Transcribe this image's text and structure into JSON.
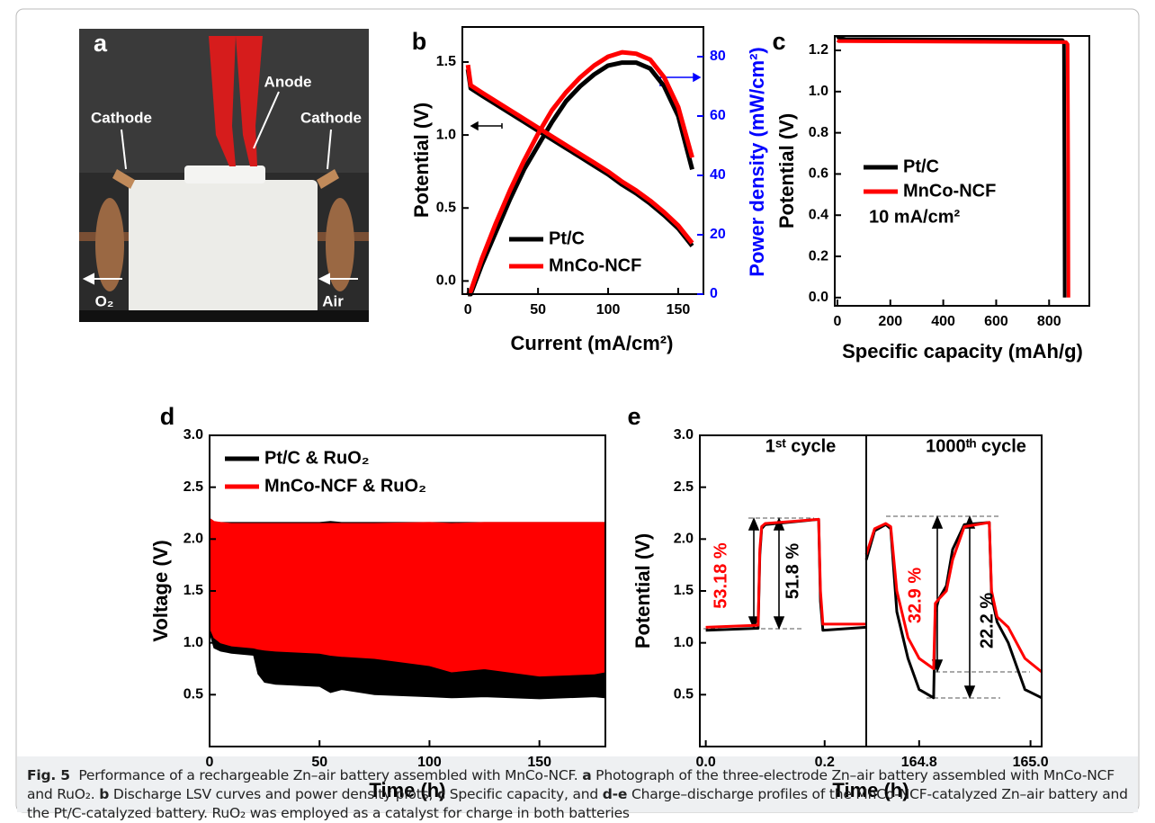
{
  "photo": {
    "label": "a",
    "texts": [
      "Anode",
      "Cathode",
      "Cathode",
      "O₂",
      "Air"
    ]
  },
  "chart_data": [
    {
      "type": "line",
      "label": "b",
      "xlabel": "Current (mA/cm²)",
      "ylabel": "Potential (V)",
      "y2label": "Power density (mW/cm²)",
      "x": [
        0,
        2,
        10,
        20,
        30,
        40,
        50,
        60,
        70,
        80,
        90,
        100,
        110,
        120,
        130,
        140,
        150,
        160
      ],
      "series": [
        {
          "name": "Pt/C",
          "color": "#000000",
          "values": [
            1.45,
            1.32,
            1.27,
            1.21,
            1.15,
            1.09,
            1.03,
            0.97,
            0.91,
            0.85,
            0.79,
            0.73,
            0.66,
            0.6,
            0.53,
            0.45,
            0.36,
            0.24
          ],
          "y2_values": [
            0,
            0,
            10,
            21,
            32,
            42,
            50,
            58,
            65,
            70,
            74,
            77,
            78,
            78,
            76,
            70,
            60,
            42
          ]
        },
        {
          "name": "MnCo-NCF",
          "color": "#ff0000",
          "values": [
            1.48,
            1.34,
            1.29,
            1.23,
            1.17,
            1.11,
            1.05,
            0.99,
            0.93,
            0.87,
            0.81,
            0.75,
            0.68,
            0.62,
            0.55,
            0.47,
            0.38,
            0.26
          ],
          "y2_values": [
            0,
            1,
            12,
            24,
            35,
            45,
            54,
            62,
            68,
            73,
            77,
            80,
            81.5,
            81,
            79,
            73,
            63,
            46
          ]
        }
      ],
      "xlim": [
        -4,
        168
      ],
      "ylim": [
        -0.09,
        1.74
      ],
      "y2lim": [
        0,
        90
      ],
      "xticks": [
        0,
        50,
        100,
        150
      ],
      "yticks": [
        {
          "value": 0,
          "label": "0.0"
        },
        0.5,
        {
          "value": 1,
          "label": "1.0"
        },
        1.5
      ],
      "y2ticks": [
        0,
        20,
        40,
        60,
        80
      ],
      "y2color": "#0000ff"
    },
    {
      "type": "line",
      "label": "c",
      "xlabel": "Specific capacity (mAh/g)",
      "ylabel": "Potential (V)",
      "annotation": "10 mA/cm²",
      "series": [
        {
          "name": "Pt/C",
          "color": "#000000",
          "x": [
            0,
            5,
            30,
            850,
            856,
            858,
            859
          ],
          "values": [
            1.27,
            1.26,
            1.255,
            1.25,
            1.24,
            0.6,
            0
          ]
        },
        {
          "name": "MnCo-NCF",
          "color": "#ff0000",
          "x": [
            0,
            5,
            30,
            864,
            870,
            872,
            873
          ],
          "values": [
            1.25,
            1.245,
            1.245,
            1.24,
            1.23,
            0.6,
            0
          ]
        }
      ],
      "xlim": [
        -10,
        952
      ],
      "ylim": [
        -0.04,
        1.27
      ],
      "xticks": [
        0,
        200,
        400,
        600,
        800
      ],
      "yticks": [
        {
          "value": 0,
          "label": "0.0"
        },
        0.2,
        0.4,
        0.6,
        0.8,
        {
          "value": 1,
          "label": "1.0"
        },
        1.2
      ]
    },
    {
      "type": "area",
      "label": "d",
      "xlabel": "Time (h)",
      "ylabel": "Voltage (V)",
      "x": [
        0,
        2,
        5,
        10,
        20,
        22,
        25,
        30,
        50,
        55,
        60,
        75,
        100,
        110,
        125,
        150,
        175,
        180
      ],
      "series": [
        {
          "name": "Pt/C & RuO₂",
          "color": "#000000",
          "values_high": [
            2.16,
            2.16,
            2.16,
            2.16,
            2.16,
            2.16,
            2.16,
            2.16,
            2.16,
            2.17,
            2.16,
            2.16,
            2.16,
            2.16,
            2.16,
            2.16,
            2.16,
            2.16
          ],
          "values_low": [
            1.1,
            0.95,
            0.92,
            0.9,
            0.88,
            0.7,
            0.62,
            0.6,
            0.58,
            0.52,
            0.55,
            0.5,
            0.48,
            0.47,
            0.48,
            0.46,
            0.48,
            0.47
          ]
        },
        {
          "name": "MnCo-NCF & RuO₂",
          "color": "#ff0000",
          "values_high": [
            2.2,
            2.17,
            2.16,
            2.15,
            2.15,
            2.15,
            2.15,
            2.15,
            2.15,
            2.15,
            2.15,
            2.15,
            2.16,
            2.15,
            2.16,
            2.16,
            2.16,
            2.16
          ],
          "values_low": [
            1.15,
            1.05,
            1.0,
            0.97,
            0.95,
            0.94,
            0.93,
            0.92,
            0.9,
            0.88,
            0.87,
            0.85,
            0.78,
            0.72,
            0.75,
            0.68,
            0.7,
            0.72
          ]
        }
      ],
      "xlim": [
        0,
        180
      ],
      "ylim": [
        0,
        3
      ],
      "xticks": [
        0,
        50,
        100,
        150
      ],
      "yticks": [
        0.5,
        {
          "value": 1,
          "label": "1.0"
        },
        1.5,
        {
          "value": 2,
          "label": "2.0"
        },
        2.5,
        {
          "value": 3,
          "label": "3.0"
        }
      ]
    },
    {
      "type": "broken-line",
      "label": "e",
      "xlabel": "Time (h)",
      "ylabel": "Potential (V)",
      "ylim": [
        0,
        3
      ],
      "yticks": [
        0.5,
        {
          "value": 1,
          "label": "1.0"
        },
        1.5,
        {
          "value": 2,
          "label": "2.0"
        },
        2.5,
        {
          "value": 3,
          "label": "3.0"
        }
      ],
      "panels": [
        {
          "title": "1ˢᵗ cycle",
          "xlim": [
            -0.01,
            0.27
          ],
          "xticks": [
            {
              "value": 0,
              "label": "0.0"
            },
            0.2
          ],
          "series": [
            {
              "color": "#000000",
              "x": [
                0,
                0.088,
                0.091,
                0.094,
                0.1,
                0.19,
                0.193,
                0.197,
                0.27
              ],
              "values": [
                1.12,
                1.14,
                1.85,
                2.1,
                2.14,
                2.19,
                1.4,
                1.12,
                1.15
              ]
            },
            {
              "color": "#ff0000",
              "x": [
                0,
                0.088,
                0.091,
                0.094,
                0.1,
                0.19,
                0.193,
                0.197,
                0.27
              ],
              "values": [
                1.15,
                1.17,
                1.9,
                2.12,
                2.15,
                2.19,
                1.5,
                1.18,
                1.18
              ]
            }
          ]
        },
        {
          "title": "1000ᵗʰ cycle",
          "xlim": [
            164.705,
            165.02
          ],
          "xticks": [
            164.8,
            {
              "value": 165,
              "label": "165.0"
            }
          ],
          "series": [
            {
              "color": "#000000",
              "x": [
                164.705,
                164.72,
                164.74,
                164.749,
                164.76,
                164.78,
                164.8,
                164.826,
                164.829,
                164.835,
                164.849,
                164.86,
                164.881,
                164.926,
                164.93,
                164.94,
                164.96,
                164.99,
                165.02
              ],
              "values": [
                1.8,
                2.08,
                2.14,
                2.1,
                1.3,
                0.85,
                0.55,
                0.47,
                1.3,
                1.42,
                1.55,
                1.9,
                2.14,
                2.16,
                1.45,
                1.2,
                1.0,
                0.55,
                0.47
              ]
            },
            {
              "color": "#ff0000",
              "x": [
                164.705,
                164.72,
                164.74,
                164.749,
                164.76,
                164.78,
                164.8,
                164.826,
                164.829,
                164.835,
                164.849,
                164.86,
                164.881,
                164.926,
                164.93,
                164.94,
                164.96,
                164.99,
                165.02
              ],
              "values": [
                1.85,
                2.1,
                2.15,
                2.12,
                1.5,
                1.05,
                0.85,
                0.75,
                1.38,
                1.42,
                1.5,
                1.8,
                2.12,
                2.16,
                1.5,
                1.25,
                1.15,
                0.85,
                0.72
              ]
            }
          ]
        }
      ],
      "annotations": [
        {
          "text": "53.18 %",
          "color": "#ff0000"
        },
        {
          "text": "51.8 %",
          "color": "#000000"
        },
        {
          "text": "32.9 %",
          "color": "#ff0000"
        },
        {
          "text": "22.2 %",
          "color": "#000000"
        }
      ]
    }
  ],
  "caption": [
    {
      "text": "Fig. 5",
      "bold": true
    },
    {
      "text": "  Performance of a rechargeable Zn–air battery assembled with MnCo-NCF. ",
      "bold": false
    },
    {
      "text": "a",
      "bold": true
    },
    {
      "text": " Photograph of the three-electrode Zn–air battery assembled with MnCo-NCF and RuO₂. ",
      "bold": false
    },
    {
      "text": "b",
      "bold": true
    },
    {
      "text": " Discharge LSV curves and power density plots, ",
      "bold": false
    },
    {
      "text": "c",
      "bold": true
    },
    {
      "text": " Specific capacity, and ",
      "bold": false
    },
    {
      "text": "d-e",
      "bold": true
    },
    {
      "text": " Charge–discharge profiles of the MnCo-NCF-catalyzed Zn–air battery and the Pt/C-catalyzed battery. RuO₂ was employed as a catalyst for charge in both batteries",
      "bold": false
    }
  ]
}
